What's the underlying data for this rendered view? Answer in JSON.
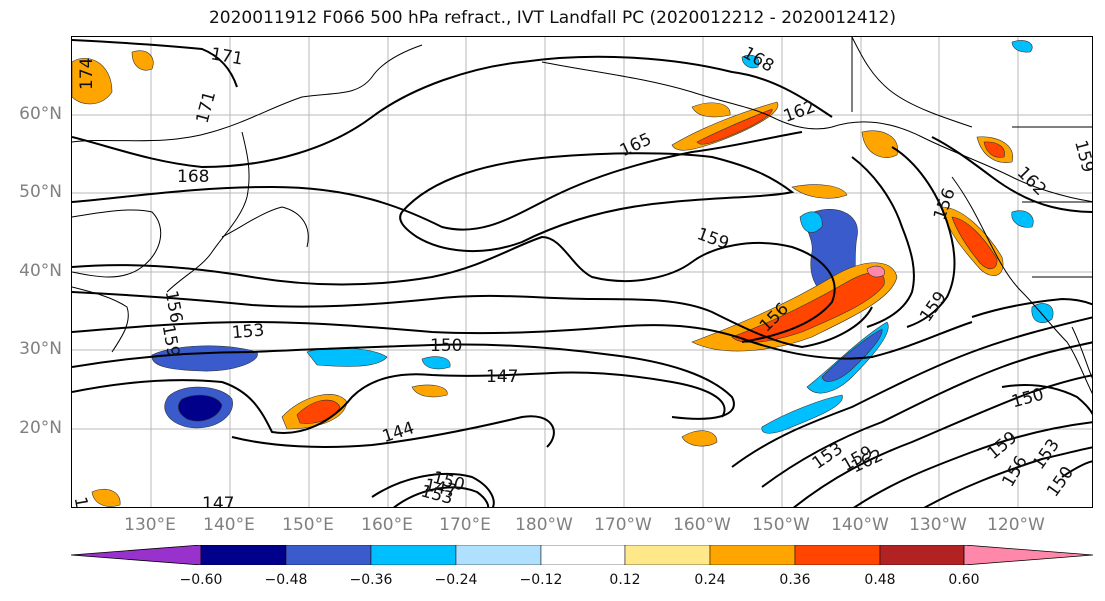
{
  "title": "2020011912 F066 500 hPa refract., IVT Landfall PC (2020012212 - 2020012412)",
  "lat_labels": [
    "60°N",
    "50°N",
    "40°N",
    "30°N",
    "20°N"
  ],
  "lon_labels": [
    "130°E",
    "140°E",
    "150°E",
    "160°E",
    "170°E",
    "180°W",
    "170°W",
    "160°W",
    "150°W",
    "140°W",
    "130°W",
    "120°W"
  ],
  "colorbar": {
    "colors": [
      "#9932cc",
      "#00008b",
      "#3a5bcc",
      "#00bfff",
      "#b0e0ff",
      "#ffffff",
      "#ffe88a",
      "#ffa500",
      "#ff4500",
      "#b22222",
      "#ff88aa"
    ],
    "ticks": [
      "−0.60",
      "−0.48",
      "−0.36",
      "−0.24",
      "−0.12",
      "0.12",
      "0.24",
      "0.36",
      "0.48",
      "0.60"
    ]
  },
  "contour_labels": [
    "171",
    "174",
    "171",
    "168",
    "168",
    "165",
    "162",
    "159",
    "162",
    "159",
    "156",
    "159",
    "156",
    "153",
    "150",
    "147",
    "144",
    "147",
    "150",
    "153",
    "156",
    "159",
    "162",
    "153",
    "159",
    "156",
    "153",
    "150",
    "150",
    "159",
    "147",
    "150"
  ]
}
